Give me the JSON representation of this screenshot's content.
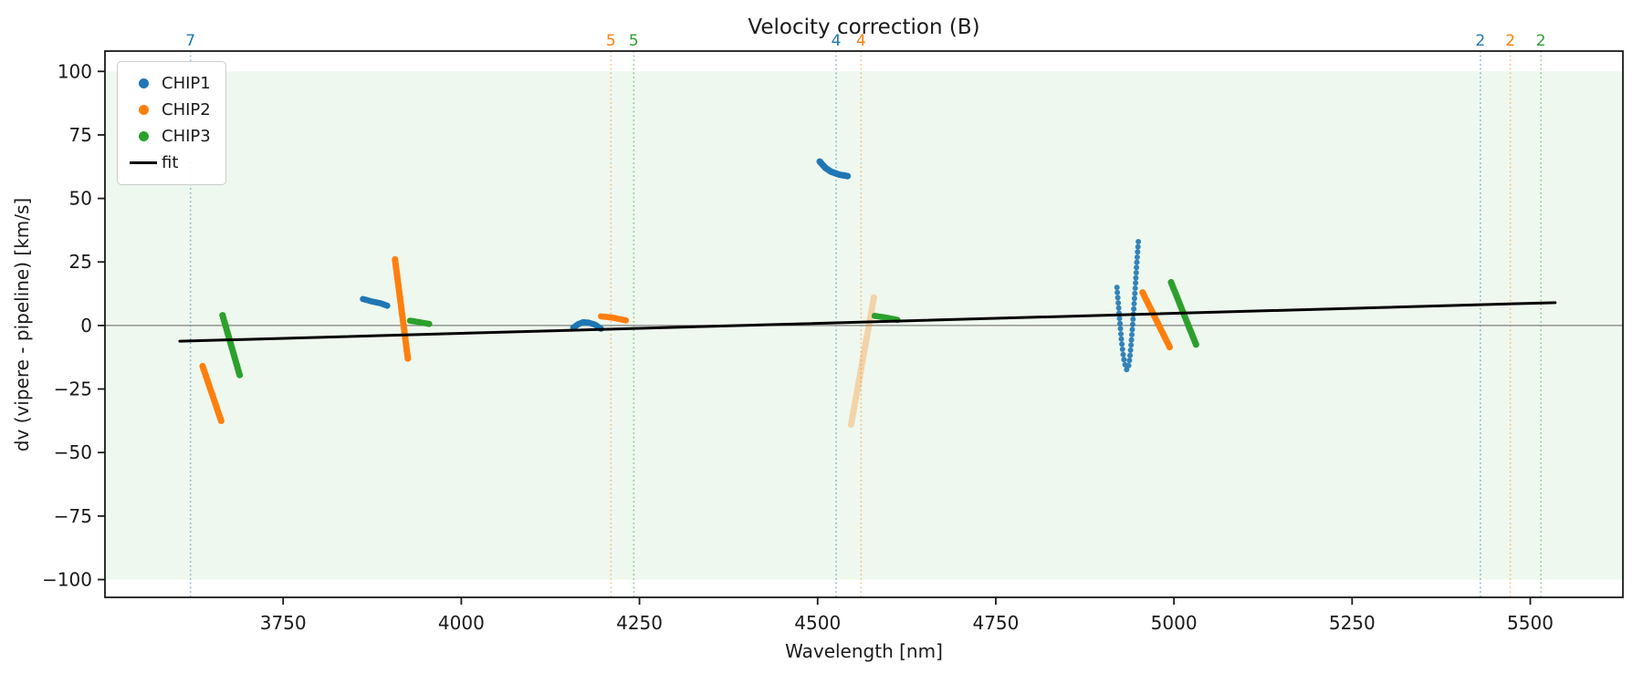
{
  "figure": {
    "title": "Velocity correction (B)",
    "xlabel": "Wavelength [nm]",
    "ylabel": "dv (vipere - pipeline) [km/s]"
  },
  "colors": {
    "chip1": "#1f77b4",
    "chip2": "#ff7f0e",
    "chip3": "#2ca02c",
    "fit": "#000000",
    "zero_line": "#808080",
    "band": "rgba(44,160,44,0.08)",
    "spine": "#1a1a1a",
    "tick_label": "#1a1a1a"
  },
  "legend": {
    "items": [
      {
        "label": "CHIP1",
        "marker": "dot",
        "color_key": "chip1"
      },
      {
        "label": "CHIP2",
        "marker": "dot",
        "color_key": "chip2"
      },
      {
        "label": "CHIP3",
        "marker": "dot",
        "color_key": "chip3"
      },
      {
        "label": "fit",
        "marker": "line",
        "color_key": "fit"
      }
    ]
  },
  "chart_data": {
    "type": "scatter",
    "title": "Velocity correction (B)",
    "xlabel": "Wavelength [nm]",
    "ylabel": "dv (vipere - pipeline) [km/s]",
    "xlim": [
      3500,
      5630
    ],
    "ylim": [
      -107,
      108
    ],
    "xticks": [
      3750,
      4000,
      4250,
      4500,
      4750,
      5000,
      5250,
      5500
    ],
    "yticks": [
      -100,
      -75,
      -50,
      -25,
      0,
      25,
      50,
      75,
      100
    ],
    "grid": false,
    "legend_position": "upper left",
    "shaded_band": {
      "ymin": -100,
      "ymax": 100,
      "color_key": "band"
    },
    "zero_line_y": 0,
    "fit_line": {
      "x": [
        3605,
        5535
      ],
      "y": [
        -6.2,
        9.0
      ]
    },
    "vlines": [
      {
        "x": 3620,
        "label": "7",
        "color_key": "chip1"
      },
      {
        "x": 4210,
        "label": "5",
        "color_key": "chip2"
      },
      {
        "x": 4242,
        "label": "5",
        "color_key": "chip3"
      },
      {
        "x": 4526,
        "label": "4",
        "color_key": "chip1"
      },
      {
        "x": 4561,
        "label": "4",
        "color_key": "chip2"
      },
      {
        "x": 5430,
        "label": "2",
        "color_key": "chip1"
      },
      {
        "x": 5472,
        "label": "2",
        "color_key": "chip2"
      },
      {
        "x": 5515,
        "label": "2",
        "color_key": "chip3"
      }
    ],
    "series": [
      {
        "name": "CHIP1",
        "color_key": "chip1",
        "segments": [
          {
            "anchors": [
              [
                3862,
                10.4
              ],
              [
                3874,
                9.5
              ],
              [
                3886,
                8.8
              ],
              [
                3896,
                7.8
              ]
            ],
            "n": 15,
            "r": 3.4,
            "opacity": 1
          },
          {
            "anchors": [
              [
                4157,
                -0.9
              ],
              [
                4164,
                0.5
              ],
              [
                4171,
                1.3
              ],
              [
                4179,
                1.1
              ],
              [
                4188,
                0.3
              ],
              [
                4196,
                -1.3
              ]
            ],
            "n": 20,
            "r": 3.4,
            "opacity": 1
          },
          {
            "anchors": [
              [
                4503,
                64.5
              ],
              [
                4511,
                62
              ],
              [
                4519,
                60.5
              ],
              [
                4530,
                59.4
              ],
              [
                4542,
                58.8
              ]
            ],
            "n": 20,
            "r": 3.6,
            "opacity": 1
          },
          {
            "anchors": [
              [
                4920,
                15
              ],
              [
                4923,
                5
              ],
              [
                4926,
                -5
              ],
              [
                4929,
                -12
              ],
              [
                4932,
                -16.5
              ],
              [
                4934,
                -17.5
              ],
              [
                4936,
                -16.5
              ],
              [
                4938,
                -13
              ],
              [
                4940,
                -7
              ],
              [
                4942,
                0
              ],
              [
                4944,
                8
              ],
              [
                4946,
                16
              ],
              [
                4948,
                25
              ],
              [
                4950,
                33
              ]
            ],
            "n": 42,
            "r": 3.0,
            "opacity": 0.9
          }
        ]
      },
      {
        "name": "CHIP2",
        "color_key": "chip2",
        "segments": [
          {
            "anchors": [
              [
                3637,
                -16
              ],
              [
                3663,
                -37.5
              ]
            ],
            "n": 24,
            "r": 3.6,
            "opacity": 1
          },
          {
            "anchors": [
              [
                3907,
                26
              ],
              [
                3913,
                13
              ],
              [
                3919,
                0
              ],
              [
                3925,
                -13
              ]
            ],
            "n": 40,
            "r": 3.6,
            "opacity": 1
          },
          {
            "anchors": [
              [
                4196,
                3.6
              ],
              [
                4212,
                3.1
              ],
              [
                4231,
                2.0
              ]
            ],
            "n": 14,
            "r": 3.4,
            "opacity": 1
          },
          {
            "anchors": [
              [
                4547,
                -39
              ],
              [
                4563,
                -14
              ],
              [
                4572,
                0
              ],
              [
                4579,
                11
              ]
            ],
            "n": 46,
            "r": 3.6,
            "opacity": 0.3
          },
          {
            "anchors": [
              [
                4956,
                13
              ],
              [
                4994,
                -8.5
              ]
            ],
            "n": 26,
            "r": 3.6,
            "opacity": 1
          }
        ]
      },
      {
        "name": "CHIP3",
        "color_key": "chip3",
        "segments": [
          {
            "anchors": [
              [
                3665,
                4
              ],
              [
                3689,
                -19.5
              ]
            ],
            "n": 26,
            "r": 3.6,
            "opacity": 1
          },
          {
            "anchors": [
              [
                3928,
                1.9
              ],
              [
                3941,
                1.3
              ],
              [
                3955,
                0.6
              ]
            ],
            "n": 12,
            "r": 3.4,
            "opacity": 1
          },
          {
            "anchors": [
              [
                4580,
                3.8
              ],
              [
                4596,
                3.1
              ],
              [
                4612,
                2.2
              ]
            ],
            "n": 13,
            "r": 3.4,
            "opacity": 1
          },
          {
            "anchors": [
              [
                4996,
                17
              ],
              [
                5031,
                -7.5
              ]
            ],
            "n": 28,
            "r": 3.6,
            "opacity": 1
          }
        ]
      }
    ]
  }
}
